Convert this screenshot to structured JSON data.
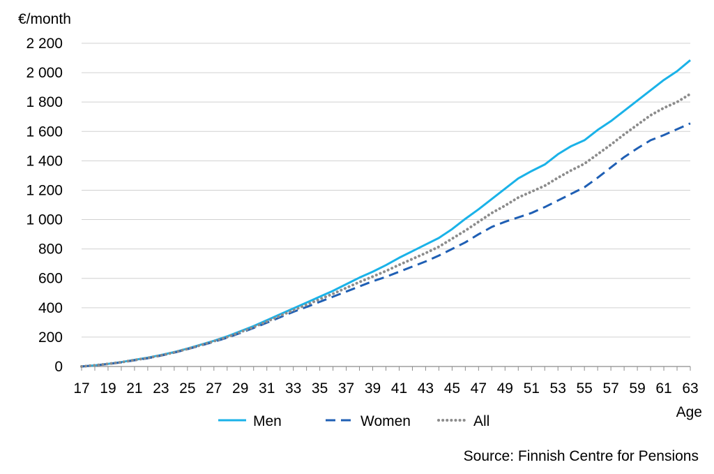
{
  "chart_data": {
    "type": "line",
    "ylabel": "€/month",
    "xlabel": "Age",
    "ylim": [
      0,
      2200
    ],
    "yticks": [
      0,
      200,
      400,
      600,
      800,
      1000,
      1200,
      1400,
      1600,
      1800,
      2000,
      2200
    ],
    "ytick_labels": [
      "0",
      "200",
      "400",
      "600",
      "800",
      "1 000",
      "1 200",
      "1 400",
      "1 600",
      "1 800",
      "2 000",
      "2 200"
    ],
    "xlim": [
      17,
      63
    ],
    "xticks": [
      17,
      19,
      21,
      23,
      25,
      27,
      29,
      31,
      33,
      35,
      37,
      39,
      41,
      43,
      45,
      47,
      49,
      51,
      53,
      55,
      57,
      59,
      61,
      63
    ],
    "xtick_labels": [
      "17",
      "19",
      "21",
      "23",
      "25",
      "27",
      "29",
      "31",
      "33",
      "35",
      "37",
      "39",
      "41",
      "43",
      "45",
      "47",
      "49",
      "51",
      "53",
      "55",
      "57",
      "59",
      "61",
      "63"
    ],
    "grid": "horizontal",
    "legend_position": "bottom",
    "x": [
      17,
      18,
      19,
      20,
      21,
      22,
      23,
      24,
      25,
      26,
      27,
      28,
      29,
      30,
      31,
      32,
      33,
      34,
      35,
      36,
      37,
      38,
      39,
      40,
      41,
      42,
      43,
      44,
      45,
      46,
      47,
      48,
      49,
      50,
      51,
      52,
      53,
      54,
      55,
      56,
      57,
      58,
      59,
      60,
      61,
      62,
      63
    ],
    "series": [
      {
        "name": "Men",
        "color": "#1ab2e8",
        "style": "solid",
        "values": [
          0,
          8,
          18,
          30,
          45,
          60,
          78,
          98,
          122,
          148,
          175,
          205,
          240,
          275,
          315,
          355,
          395,
          435,
          475,
          515,
          560,
          605,
          645,
          690,
          740,
          785,
          830,
          875,
          935,
          1005,
          1070,
          1140,
          1210,
          1280,
          1330,
          1375,
          1445,
          1500,
          1540,
          1610,
          1670,
          1740,
          1810,
          1880,
          1950,
          2010,
          2085
        ]
      },
      {
        "name": "Women",
        "color": "#1f5fb4",
        "style": "dashed",
        "values": [
          0,
          7,
          17,
          28,
          42,
          56,
          74,
          94,
          118,
          142,
          168,
          196,
          228,
          262,
          298,
          335,
          372,
          405,
          440,
          475,
          510,
          545,
          580,
          610,
          645,
          680,
          715,
          755,
          800,
          845,
          900,
          950,
          985,
          1015,
          1045,
          1085,
          1130,
          1175,
          1220,
          1285,
          1355,
          1425,
          1485,
          1540,
          1575,
          1615,
          1655
        ]
      },
      {
        "name": "All",
        "color": "#8c8c8c",
        "style": "dotted",
        "values": [
          0,
          8,
          18,
          29,
          44,
          58,
          76,
          96,
          120,
          145,
          172,
          200,
          234,
          268,
          306,
          345,
          383,
          420,
          458,
          495,
          535,
          575,
          612,
          650,
          692,
          732,
          772,
          815,
          870,
          925,
          985,
          1045,
          1095,
          1150,
          1190,
          1230,
          1285,
          1335,
          1380,
          1445,
          1510,
          1580,
          1645,
          1710,
          1760,
          1800,
          1855
        ]
      }
    ],
    "source": "Source: Finnish Centre for Pensions"
  }
}
